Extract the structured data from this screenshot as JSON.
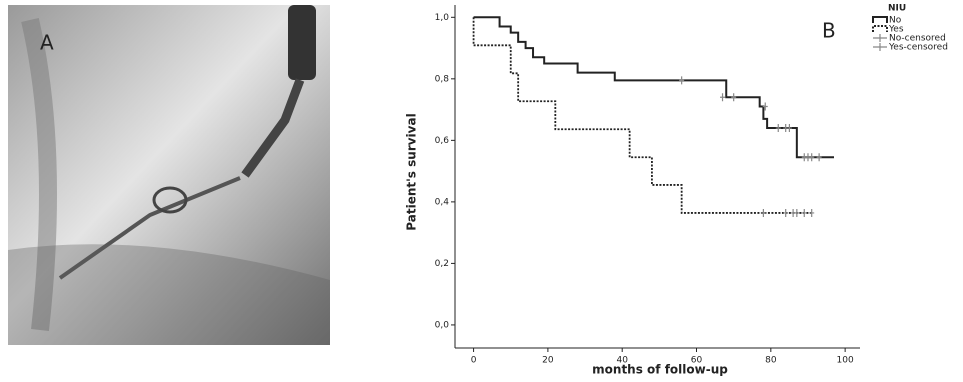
{
  "panel_labels": [
    "A",
    "B"
  ],
  "chart_data": {
    "type": "line",
    "step": true,
    "x_label": "months of follow-up",
    "y_label": "Patient's survival",
    "legend_title": "NIU",
    "legend_position": "upper right",
    "xlim": [
      -5,
      104
    ],
    "ylim": [
      -0.075,
      1.04
    ],
    "xticks": [
      0,
      20,
      40,
      60,
      80,
      100
    ],
    "yticks": [
      {
        "value": 0,
        "label": "0,0"
      },
      {
        "value": 0.2,
        "label": "0,2"
      },
      {
        "value": 0.4,
        "label": "0,4"
      },
      {
        "value": 0.6,
        "label": "0,6"
      },
      {
        "value": 0.8,
        "label": "0,8"
      },
      {
        "value": 1,
        "label": "1,0"
      }
    ],
    "series": [
      {
        "name": "No",
        "color": "#222222",
        "line_style": "solid",
        "x": [
          0,
          7,
          10,
          12,
          14,
          16,
          19,
          28,
          38,
          68,
          77,
          78,
          79,
          87,
          97
        ],
        "values": [
          1.0,
          0.97,
          0.95,
          0.92,
          0.9,
          0.87,
          0.85,
          0.82,
          0.795,
          0.74,
          0.71,
          0.67,
          0.64,
          0.545,
          0.545
        ]
      },
      {
        "name": "Yes",
        "color": "#222222",
        "line_style": "dotted",
        "x": [
          0,
          10,
          12,
          22,
          42,
          48,
          56,
          91
        ],
        "values": [
          0.909,
          0.818,
          0.727,
          0.636,
          0.545,
          0.455,
          0.364,
          0.364
        ]
      },
      {
        "name": "No-censored",
        "color": "#888888",
        "marker": "+",
        "x": [
          56,
          67,
          70,
          78.5,
          82,
          84,
          85,
          89,
          90,
          91,
          93
        ],
        "values": [
          0.795,
          0.74,
          0.74,
          0.71,
          0.64,
          0.64,
          0.64,
          0.545,
          0.545,
          0.545,
          0.545
        ]
      },
      {
        "name": "Yes-censored",
        "color": "#888888",
        "marker": "+",
        "x": [
          78,
          84,
          86,
          87,
          89,
          91
        ],
        "values": [
          0.364,
          0.364,
          0.364,
          0.364,
          0.364,
          0.364
        ]
      }
    ]
  }
}
